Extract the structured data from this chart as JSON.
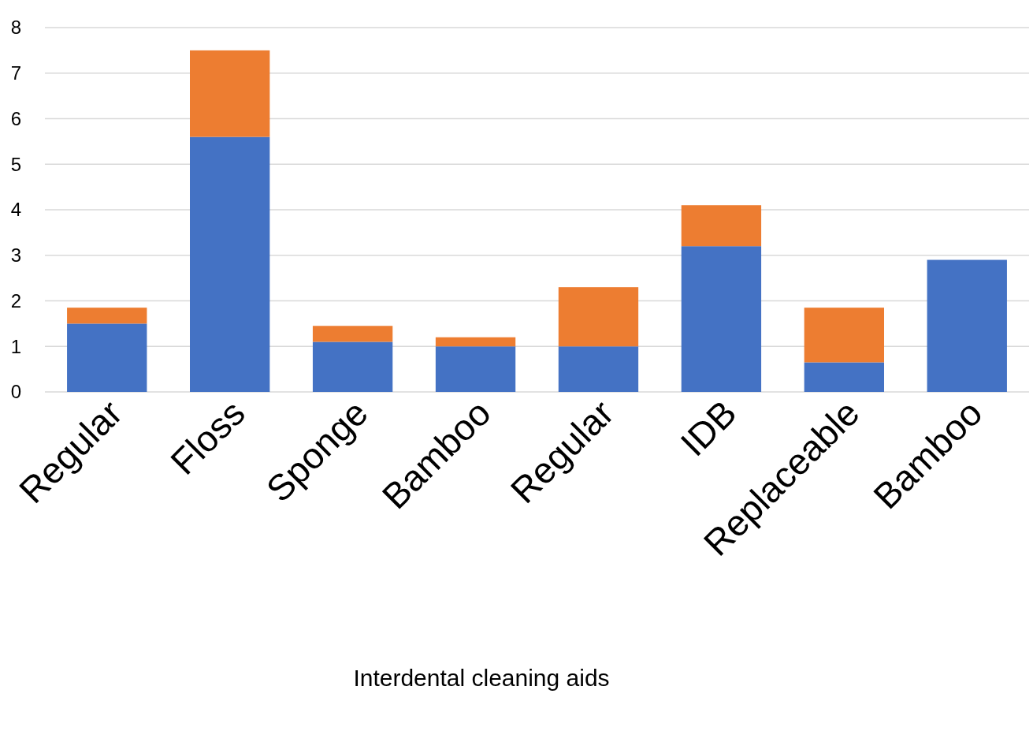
{
  "chart_data": {
    "type": "bar",
    "xlabel": "Interdental cleaning aids",
    "categories": [
      "Regular",
      "Floss",
      "Sponge",
      "Bamboo",
      "Regular",
      "IDB",
      "Replaceable",
      "Bamboo"
    ],
    "stacked": true,
    "series": [
      {
        "color": "#4472c4",
        "values": [
          1.5,
          5.6,
          1.1,
          1.0,
          1.0,
          3.2,
          0.65,
          2.9
        ]
      },
      {
        "color": "#ed7d31",
        "values": [
          0.35,
          1.9,
          0.35,
          0.2,
          1.3,
          0.9,
          1.2,
          0
        ]
      }
    ],
    "ylim": [
      0,
      8
    ],
    "yticks": [
      0,
      1,
      2,
      3,
      4,
      5,
      6,
      7,
      8
    ],
    "grid": "y"
  }
}
